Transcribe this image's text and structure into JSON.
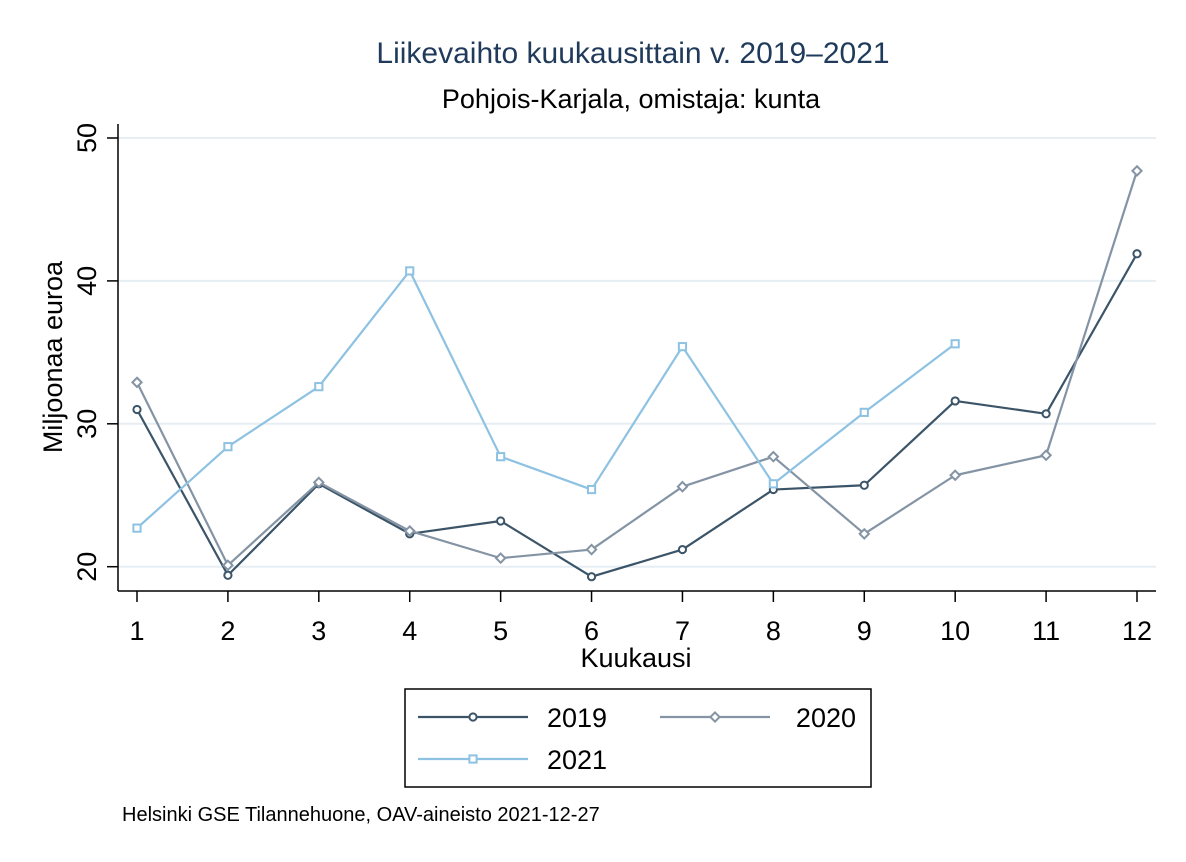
{
  "chart_data": {
    "type": "line",
    "title": "Liikevaihto kuukausittain v. 2019–2021",
    "subtitle": "Pohjois-Karjala, omistaja: kunta",
    "xlabel": "Kuukausi",
    "ylabel": "Miljoonaa euroa",
    "x": [
      1,
      2,
      3,
      4,
      5,
      6,
      7,
      8,
      9,
      10,
      11,
      12
    ],
    "x_ticks": [
      "1",
      "2",
      "3",
      "4",
      "5",
      "6",
      "7",
      "8",
      "9",
      "10",
      "11",
      "12"
    ],
    "y_ticks": [
      "20",
      "30",
      "40",
      "50"
    ],
    "xlim": [
      1,
      12
    ],
    "ylim": [
      18.3,
      50
    ],
    "grid": "horizontal",
    "legend_position": "bottom",
    "series": [
      {
        "name": "2019",
        "marker": "circle",
        "color": "#3b5468",
        "values": [
          31.0,
          19.4,
          25.8,
          22.3,
          23.2,
          19.3,
          21.2,
          25.4,
          25.7,
          31.6,
          30.7,
          41.9
        ]
      },
      {
        "name": "2020",
        "marker": "diamond",
        "color": "#8494a4",
        "values": [
          32.9,
          20.1,
          25.9,
          22.5,
          20.6,
          21.2,
          25.6,
          27.7,
          22.3,
          26.4,
          27.8,
          47.7
        ]
      },
      {
        "name": "2021",
        "marker": "square",
        "color": "#8ec2e2",
        "values": [
          22.7,
          28.4,
          32.6,
          40.7,
          27.7,
          25.4,
          35.4,
          25.8,
          30.8,
          35.6,
          null,
          null
        ]
      }
    ],
    "note": "Helsinki GSE Tilannehuone, OAV-aineisto 2021-12-27"
  }
}
